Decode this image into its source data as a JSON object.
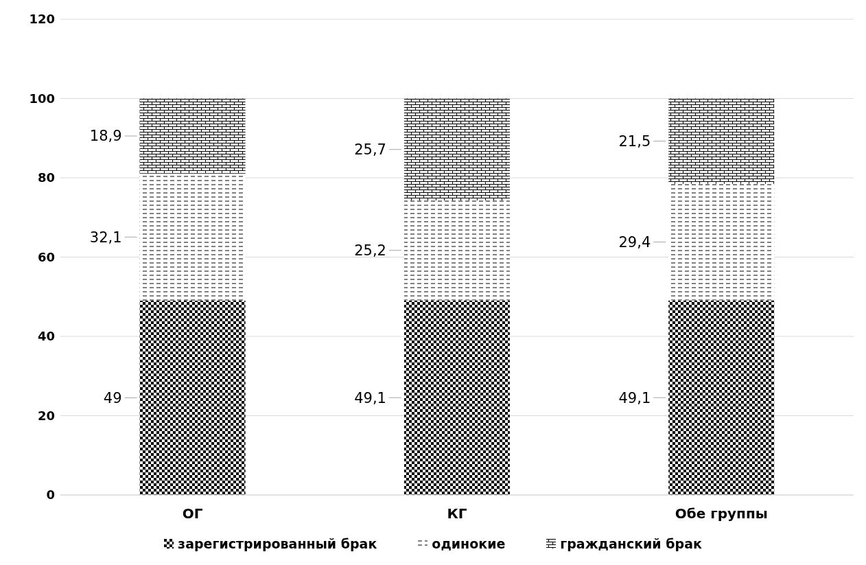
{
  "chart_data": {
    "type": "bar",
    "stacked": true,
    "categories": [
      "ОГ",
      "КГ",
      "Обе группы"
    ],
    "series": [
      {
        "name": "зарегистрированный брак",
        "color": "#000000",
        "values": [
          49,
          49.1,
          49.1
        ],
        "value_labels": [
          "49",
          "49,1",
          "49,1"
        ]
      },
      {
        "name": "одинокие",
        "color": "#000000",
        "values": [
          32.1,
          25.2,
          29.4
        ],
        "value_labels": [
          "32,1",
          "25,2",
          "29,4"
        ]
      },
      {
        "name": "гражданский брак",
        "color": "#000000",
        "values": [
          18.9,
          25.7,
          21.5
        ],
        "value_labels": [
          "18,9",
          "25,7",
          "21,5"
        ]
      }
    ],
    "ylim": [
      0,
      120
    ],
    "yticks": [
      0,
      20,
      40,
      60,
      80,
      100,
      120
    ],
    "grid": "y",
    "legend": "bottom"
  }
}
